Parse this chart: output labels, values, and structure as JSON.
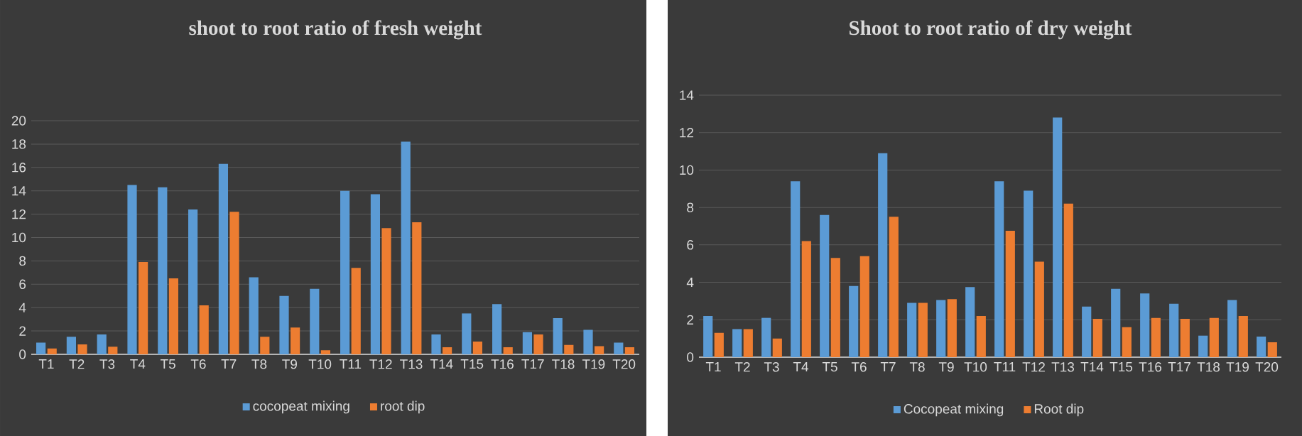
{
  "chart_data": [
    {
      "type": "bar",
      "title": "shoot to root ratio of fresh weight",
      "categories": [
        "T1",
        "T2",
        "T3",
        "T4",
        "T5",
        "T6",
        "T7",
        "T8",
        "T9",
        "T10",
        "T11",
        "T12",
        "T13",
        "T14",
        "T15",
        "T16",
        "T17",
        "T18",
        "T19",
        "T20"
      ],
      "series": [
        {
          "name": "cocopeat mixing",
          "color": "#5b9bd5",
          "values": [
            1.0,
            1.5,
            1.7,
            14.5,
            14.3,
            12.4,
            16.3,
            6.6,
            5.0,
            5.6,
            14.0,
            13.7,
            18.2,
            1.7,
            3.5,
            4.3,
            1.9,
            3.1,
            2.1,
            1.0
          ]
        },
        {
          "name": "root dip",
          "color": "#ed7d31",
          "values": [
            0.5,
            0.85,
            0.65,
            7.9,
            6.5,
            4.2,
            12.2,
            1.5,
            2.3,
            0.35,
            7.4,
            10.8,
            11.3,
            0.6,
            1.1,
            0.6,
            1.7,
            0.8,
            0.7,
            0.6
          ]
        }
      ],
      "ylim": [
        0,
        20
      ],
      "yticks": [
        0,
        2,
        4,
        6,
        8,
        10,
        12,
        14,
        16,
        18,
        20
      ],
      "grid": "y",
      "legend": "bottom"
    },
    {
      "type": "bar",
      "title": "Shoot to root ratio of dry weight",
      "categories": [
        "T1",
        "T2",
        "T3",
        "T4",
        "T5",
        "T6",
        "T7",
        "T8",
        "T9",
        "T10",
        "T11",
        "T12",
        "T13",
        "T14",
        "T15",
        "T16",
        "T17",
        "T18",
        "T19",
        "T20"
      ],
      "series": [
        {
          "name": "Cocopeat mixing",
          "color": "#5b9bd5",
          "values": [
            2.2,
            1.5,
            2.1,
            9.4,
            7.6,
            3.8,
            10.9,
            2.9,
            3.05,
            3.75,
            9.4,
            8.9,
            12.8,
            2.7,
            3.65,
            3.4,
            2.85,
            1.15,
            3.05,
            1.1
          ]
        },
        {
          "name": "Root dip",
          "color": "#ed7d31",
          "values": [
            1.3,
            1.5,
            1.0,
            6.2,
            5.3,
            5.4,
            7.5,
            2.9,
            3.1,
            2.2,
            6.75,
            5.1,
            8.2,
            2.05,
            1.6,
            2.1,
            2.05,
            2.1,
            2.2,
            0.8
          ]
        }
      ],
      "ylim": [
        0,
        14
      ],
      "yticks": [
        0,
        2,
        4,
        6,
        8,
        10,
        12,
        14
      ],
      "grid": "y",
      "legend": "bottom"
    }
  ]
}
